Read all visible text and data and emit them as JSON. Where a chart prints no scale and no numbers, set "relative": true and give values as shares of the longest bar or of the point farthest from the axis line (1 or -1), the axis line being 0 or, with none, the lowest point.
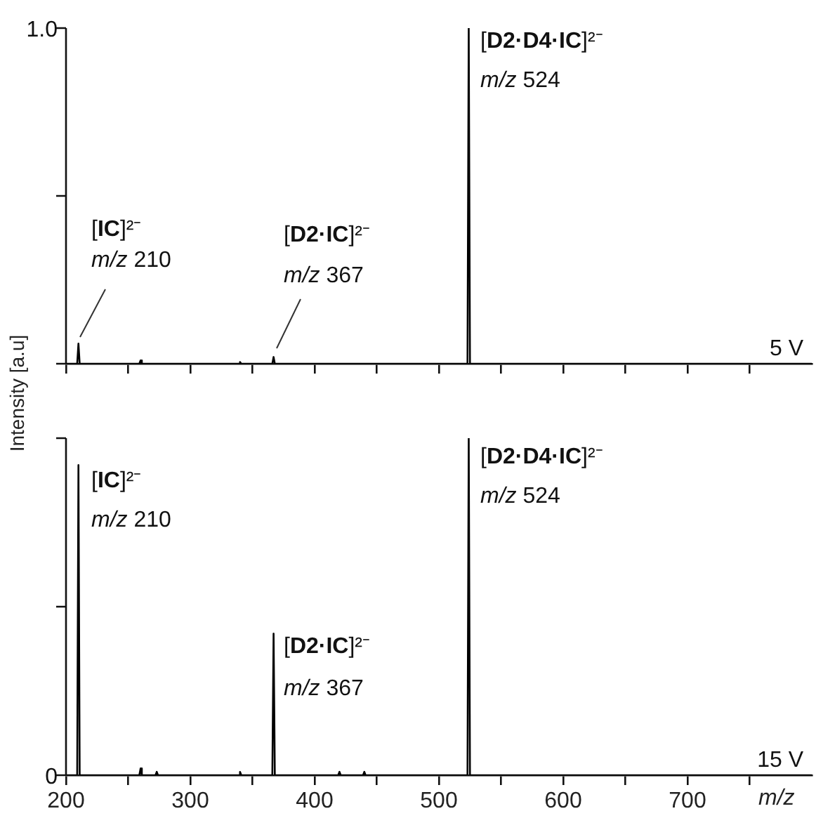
{
  "chart_data": [
    {
      "type": "line",
      "ylabel": "Intensity [a.u]",
      "relative": true,
      "xlim": [
        200,
        800
      ],
      "xticks": [
        {
          "value": 200,
          "label": null
        },
        {
          "value": 250,
          "label": null
        },
        {
          "value": 300,
          "label": null
        },
        {
          "value": 350,
          "label": null
        },
        {
          "value": 400,
          "label": null
        },
        {
          "value": 450,
          "label": null
        },
        {
          "value": 500,
          "label": null
        },
        {
          "value": 550,
          "label": null
        },
        {
          "value": 600,
          "label": null
        },
        {
          "value": 650,
          "label": null
        },
        {
          "value": 700,
          "label": null
        },
        {
          "value": 750,
          "label": null
        }
      ],
      "tick_labels": false,
      "grid": false,
      "legend": false,
      "marker": "none",
      "line_style": "solid",
      "series": [
        {
          "color": "#000000",
          "x": [
            200,
            209,
            210,
            211,
            259,
            260,
            261,
            339,
            340,
            341,
            366,
            367,
            368,
            523,
            524,
            525,
            800
          ],
          "values": [
            0,
            0,
            0.06,
            0,
            0,
            0.01,
            0,
            0,
            0.005,
            0,
            0,
            0.02,
            0,
            0,
            1.0,
            0,
            0
          ]
        }
      ],
      "annotations": [
        "1.0",
        "[IC]²⁻",
        "m/z 210",
        "[D2·IC]²⁻",
        "m/z 367",
        "[D2·D4·IC]²⁻",
        "m/z 524",
        "5 V"
      ]
    },
    {
      "type": "line",
      "xlabel": "m/z",
      "relative": true,
      "xlim": [
        200,
        800
      ],
      "xticks": [
        200,
        {
          "value": 250,
          "label": null
        },
        300,
        {
          "value": 350,
          "label": null
        },
        400,
        {
          "value": 450,
          "label": null
        },
        500,
        {
          "value": 550,
          "label": null
        },
        600,
        {
          "value": 650,
          "label": null
        },
        700,
        {
          "value": 750,
          "label": null
        }
      ],
      "tick_labels": "x",
      "grid": false,
      "legend": false,
      "marker": "none",
      "line_style": "solid",
      "series": [
        {
          "color": "#000000",
          "x": [
            200,
            209,
            210,
            211,
            259,
            260,
            261,
            272,
            273,
            274,
            339,
            340,
            341,
            366,
            367,
            368,
            419,
            420,
            421,
            439,
            440,
            441,
            523,
            524,
            525,
            800
          ],
          "values": [
            0,
            0,
            0.92,
            0,
            0,
            0.02,
            0,
            0,
            0.01,
            0,
            0,
            0.01,
            0,
            0,
            0.42,
            0,
            0,
            0.01,
            0,
            0,
            0.01,
            0,
            0,
            1.0,
            0,
            0
          ]
        }
      ],
      "annotations": [
        "0",
        "[IC]²⁻",
        "m/z 210",
        "[D2·IC]²⁻",
        "m/z 367",
        "[D2·D4·IC]²⁻",
        "m/z 524",
        "15 V"
      ]
    }
  ]
}
